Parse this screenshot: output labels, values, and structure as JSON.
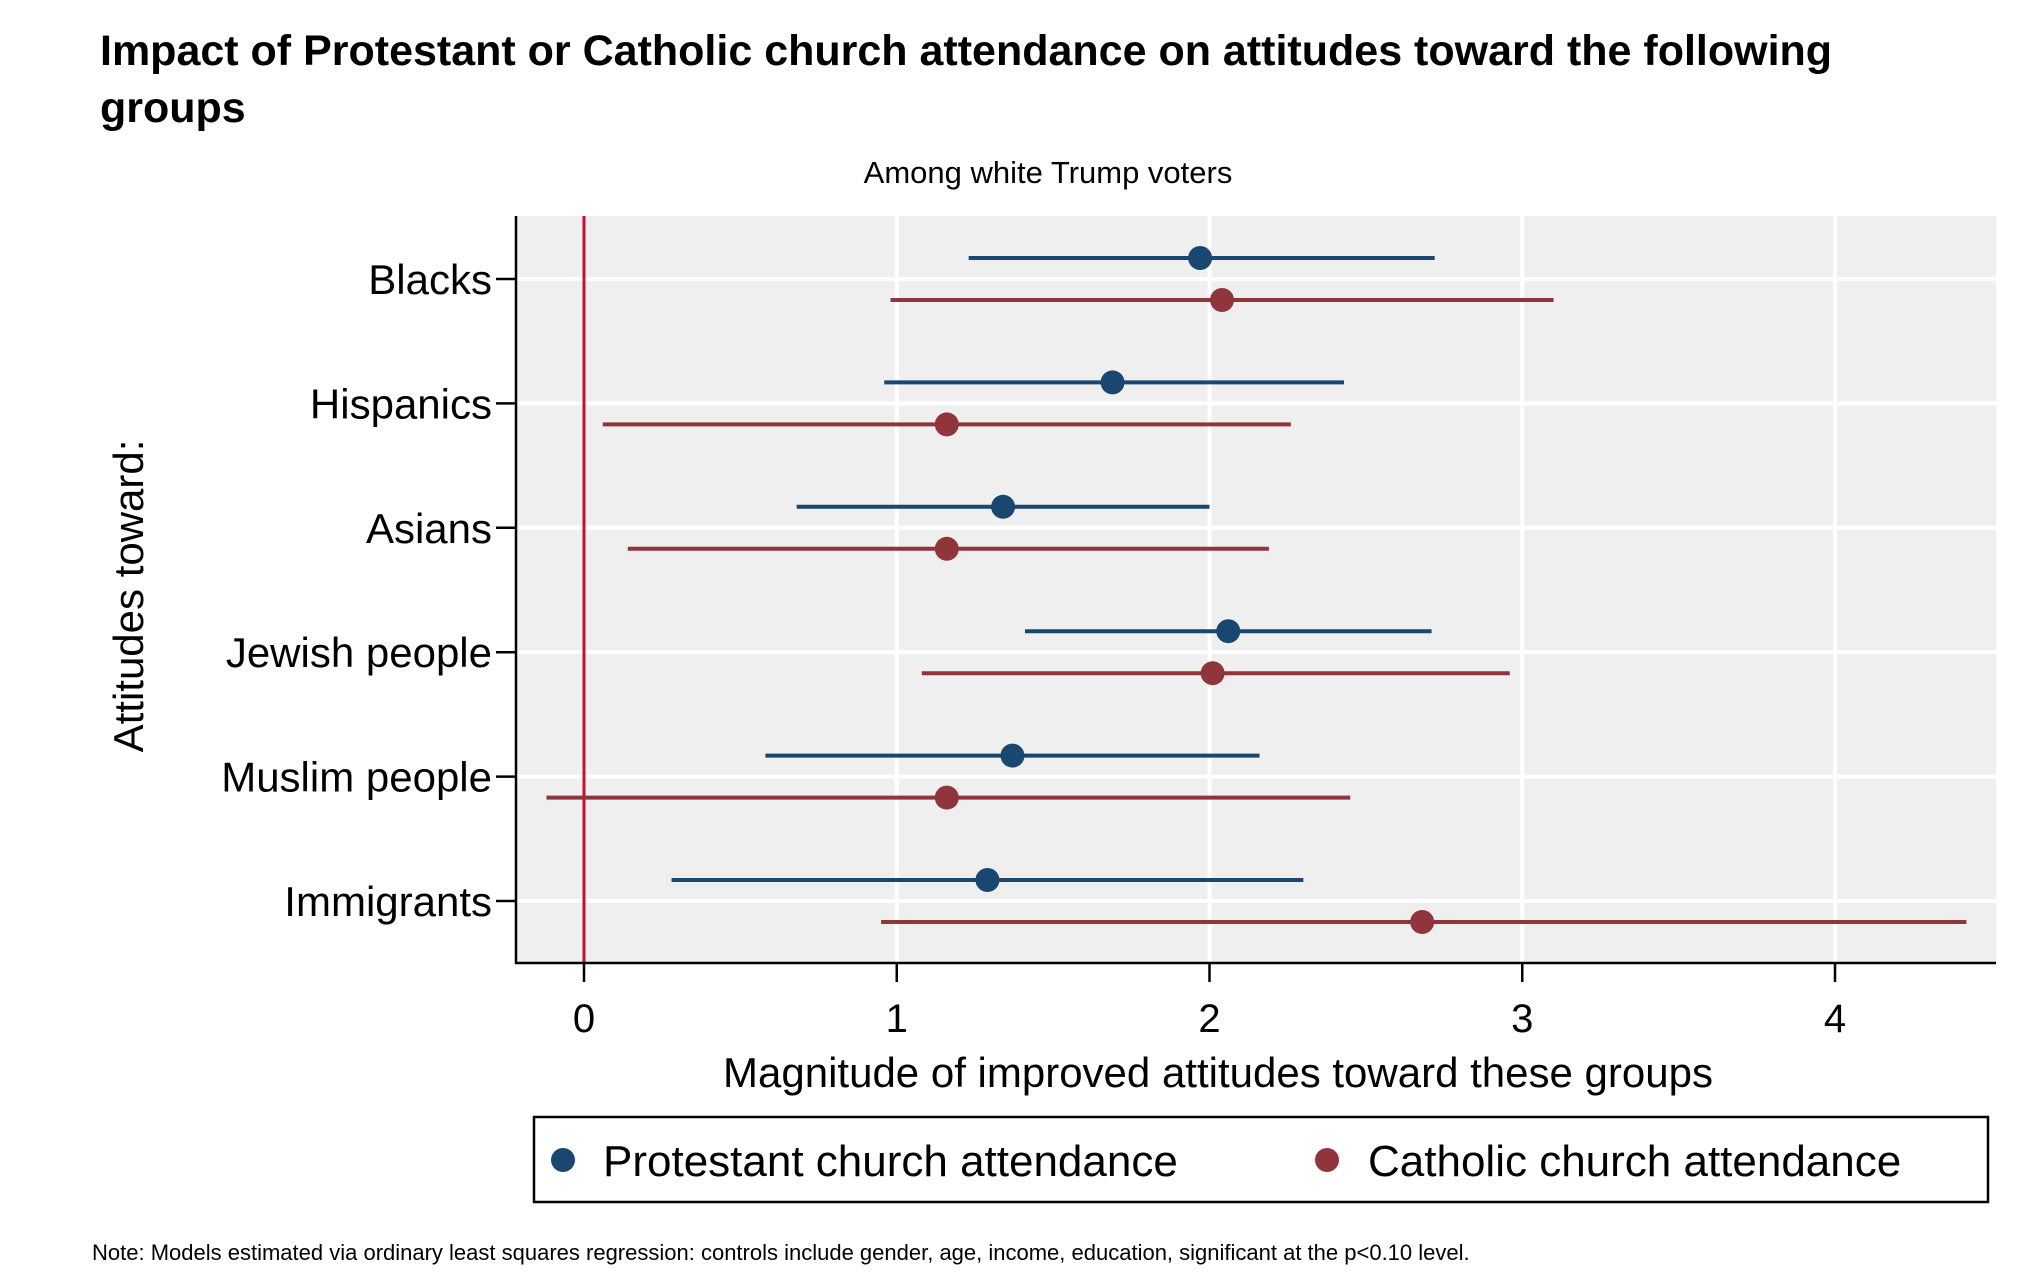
{
  "chart_data": {
    "type": "scatter",
    "subtype": "coefficient-plot-with-confidence-intervals",
    "title": "Impact of Protestant or Catholic church attendance on attitudes toward the following groups",
    "title_lines": [
      "Impact of Protestant or Catholic church attendance on attitudes toward the following",
      "groups"
    ],
    "subtitle": "Among white Trump voters",
    "xlabel": "Magnitude of improved attitudes toward these groups",
    "ylabel": "Attitudes toward:",
    "xlim": [
      -0.22,
      4.52
    ],
    "xticks": [
      0,
      1,
      2,
      3,
      4
    ],
    "xtick_labels": [
      "0",
      "1",
      "2",
      "3",
      "4"
    ],
    "reference_line_x": 0,
    "grid": true,
    "categories": [
      "Blacks",
      "Hispanics",
      "Asians",
      "Jewish people",
      "Muslim people",
      "Immigrants"
    ],
    "series": [
      {
        "name": "Protestant church attendance",
        "color": "#1a476f",
        "estimates": [
          1.97,
          1.69,
          1.34,
          2.06,
          1.37,
          1.29
        ],
        "ci_low": [
          1.23,
          0.96,
          0.68,
          1.41,
          0.58,
          0.28
        ],
        "ci_high": [
          2.72,
          2.43,
          2.0,
          2.71,
          2.16,
          2.3
        ]
      },
      {
        "name": "Catholic church attendance",
        "color": "#90353b",
        "estimates": [
          2.04,
          1.16,
          1.16,
          2.01,
          1.16,
          2.68
        ],
        "ci_low": [
          0.98,
          0.06,
          0.14,
          1.08,
          -0.12,
          0.95
        ],
        "ci_high": [
          3.1,
          2.26,
          2.19,
          2.96,
          2.45,
          4.42
        ]
      }
    ],
    "legend": [
      "Protestant church attendance",
      "Catholic church attendance"
    ],
    "legend_position": "bottom",
    "note": "Note: Models estimated via ordinary least squares regression: controls include gender, age, income, education, significant at the p<0.10 level."
  },
  "colors": {
    "plot_background": "#efefef",
    "reference_line": "#c8102e",
    "gridline": "#ffffff",
    "axis": "#000000"
  }
}
